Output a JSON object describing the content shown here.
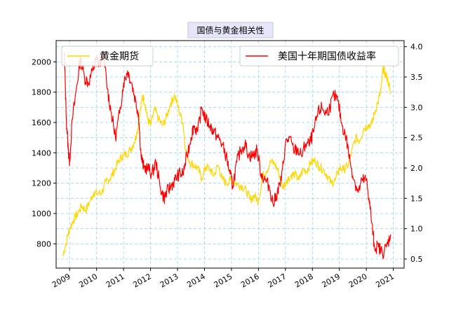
{
  "chart_data": {
    "type": "line",
    "title": "国债与黄金相关性",
    "xlabel": "",
    "ylabel_left": "",
    "ylabel_right": "",
    "x_range": [
      2008.5,
      2021.4
    ],
    "left_ylim": [
      640,
      2140
    ],
    "right_ylim": [
      0.35,
      4.1
    ],
    "x_tick_labels": [
      "2009",
      "2010",
      "2011",
      "2012",
      "2013",
      "2014",
      "2015",
      "2016",
      "2017",
      "2018",
      "2019",
      "2020",
      "2021"
    ],
    "x_ticks": [
      2009,
      2010,
      2011,
      2012,
      2013,
      2014,
      2015,
      2016,
      2017,
      2018,
      2019,
      2020,
      2021
    ],
    "left_ticks": [
      800,
      1000,
      1200,
      1400,
      1600,
      1800,
      2000
    ],
    "right_ticks": [
      0.5,
      1.0,
      1.5,
      2.0,
      2.5,
      3.0,
      3.5,
      4.0
    ],
    "right_tick_labels": [
      "0.5",
      "1.0",
      "1.5",
      "2.0",
      "2.5",
      "3.0",
      "3.5",
      "4.0"
    ],
    "grid": true,
    "legend_left": "top-left",
    "legend_right": "top-right",
    "colors": {
      "gold": "#ffd700",
      "yield": "#ff0000",
      "grid": "#87ceeb",
      "title_bg": "#e6e6fa"
    },
    "series": [
      {
        "name": "黄金期货",
        "axis": "left",
        "color": "#ffd700",
        "x": [
          2008.75,
          2008.9,
          2009.0,
          2009.15,
          2009.3,
          2009.45,
          2009.6,
          2009.75,
          2009.9,
          2010.05,
          2010.2,
          2010.35,
          2010.5,
          2010.65,
          2010.8,
          2010.95,
          2011.1,
          2011.25,
          2011.4,
          2011.5,
          2011.6,
          2011.7,
          2011.8,
          2011.9,
          2012.0,
          2012.15,
          2012.3,
          2012.45,
          2012.6,
          2012.75,
          2012.9,
          2013.05,
          2013.2,
          2013.3,
          2013.45,
          2013.6,
          2013.75,
          2013.9,
          2014.05,
          2014.2,
          2014.35,
          2014.5,
          2014.65,
          2014.8,
          2014.95,
          2015.1,
          2015.25,
          2015.4,
          2015.55,
          2015.7,
          2015.85,
          2016.0,
          2016.15,
          2016.3,
          2016.45,
          2016.6,
          2016.75,
          2016.9,
          2017.05,
          2017.2,
          2017.35,
          2017.5,
          2017.65,
          2017.8,
          2017.95,
          2018.1,
          2018.25,
          2018.4,
          2018.55,
          2018.7,
          2018.85,
          2019.0,
          2019.15,
          2019.3,
          2019.45,
          2019.6,
          2019.75,
          2019.9,
          2020.05,
          2020.2,
          2020.3,
          2020.45,
          2020.55,
          2020.62,
          2020.7,
          2020.8,
          2020.9
        ],
        "y": [
          720,
          830,
          900,
          960,
          1000,
          1050,
          1020,
          1080,
          1140,
          1130,
          1140,
          1210,
          1230,
          1280,
          1340,
          1380,
          1390,
          1420,
          1470,
          1540,
          1640,
          1780,
          1720,
          1620,
          1580,
          1690,
          1620,
          1580,
          1640,
          1730,
          1780,
          1680,
          1600,
          1420,
          1340,
          1320,
          1300,
          1230,
          1310,
          1290,
          1250,
          1320,
          1230,
          1200,
          1220,
          1210,
          1190,
          1180,
          1150,
          1090,
          1120,
          1080,
          1240,
          1280,
          1340,
          1330,
          1270,
          1170,
          1220,
          1250,
          1260,
          1220,
          1290,
          1280,
          1340,
          1350,
          1310,
          1290,
          1250,
          1200,
          1220,
          1300,
          1290,
          1310,
          1400,
          1500,
          1480,
          1560,
          1580,
          1590,
          1660,
          1750,
          1820,
          1960,
          1920,
          1880,
          1790
        ]
      },
      {
        "name": "美国十年期国债收益率",
        "axis": "right",
        "color": "#ff0000",
        "x": [
          2008.8,
          2008.88,
          2008.95,
          2009.0,
          2009.1,
          2009.25,
          2009.4,
          2009.55,
          2009.7,
          2009.85,
          2010.0,
          2010.1,
          2010.25,
          2010.4,
          2010.55,
          2010.7,
          2010.85,
          2011.0,
          2011.15,
          2011.3,
          2011.45,
          2011.55,
          2011.65,
          2011.75,
          2011.9,
          2012.05,
          2012.2,
          2012.35,
          2012.5,
          2012.6,
          2012.75,
          2012.9,
          2013.05,
          2013.2,
          2013.35,
          2013.5,
          2013.6,
          2013.75,
          2013.9,
          2014.05,
          2014.2,
          2014.35,
          2014.5,
          2014.65,
          2014.8,
          2014.95,
          2015.05,
          2015.2,
          2015.35,
          2015.5,
          2015.65,
          2015.8,
          2015.95,
          2016.1,
          2016.25,
          2016.4,
          2016.55,
          2016.7,
          2016.85,
          2017.0,
          2017.15,
          2017.3,
          2017.45,
          2017.6,
          2017.75,
          2017.9,
          2018.05,
          2018.2,
          2018.35,
          2018.5,
          2018.65,
          2018.8,
          2018.95,
          2019.1,
          2019.25,
          2019.4,
          2019.55,
          2019.7,
          2019.85,
          2020.0,
          2020.1,
          2020.2,
          2020.3,
          2020.45,
          2020.6,
          2020.75,
          2020.9
        ],
        "y": [
          3.9,
          2.8,
          2.3,
          2.1,
          2.8,
          3.3,
          3.8,
          3.5,
          3.4,
          3.6,
          3.8,
          3.7,
          3.9,
          3.3,
          2.9,
          2.5,
          2.9,
          3.4,
          3.6,
          3.4,
          3.1,
          2.9,
          2.2,
          2.0,
          2.0,
          1.9,
          2.1,
          1.7,
          1.5,
          1.6,
          1.7,
          1.8,
          1.9,
          1.9,
          2.2,
          2.5,
          2.7,
          2.6,
          3.0,
          2.8,
          2.7,
          2.6,
          2.5,
          2.4,
          2.2,
          1.9,
          1.7,
          2.1,
          2.3,
          2.4,
          2.2,
          2.2,
          2.3,
          1.9,
          1.8,
          1.7,
          1.4,
          1.6,
          1.8,
          2.4,
          2.5,
          2.3,
          2.3,
          2.2,
          2.4,
          2.4,
          2.6,
          2.9,
          3.0,
          2.9,
          3.0,
          3.2,
          3.1,
          2.7,
          2.5,
          2.1,
          1.8,
          1.6,
          1.8,
          1.8,
          1.5,
          1.1,
          0.7,
          0.7,
          0.6,
          0.7,
          0.9
        ]
      }
    ]
  }
}
